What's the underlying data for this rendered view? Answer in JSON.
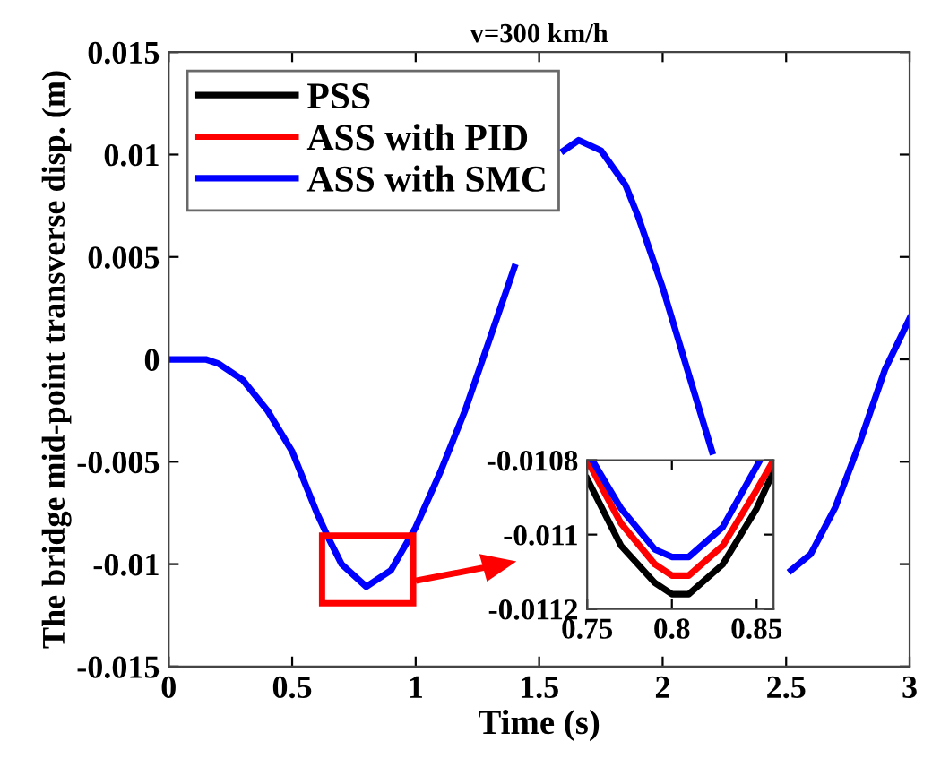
{
  "chart_data": [
    {
      "type": "line",
      "title": "v=300 km/h",
      "xlabel": "Time (s)",
      "ylabel": "The bridge mid-point transverse disp. (m)",
      "x": [
        0,
        0.15,
        0.2,
        0.3,
        0.4,
        0.5,
        0.6,
        0.65,
        0.7,
        0.8,
        0.9,
        1.0,
        1.1,
        1.2,
        1.3,
        1.4,
        1.5,
        1.6,
        1.66,
        1.75,
        1.85,
        1.9,
        2.0,
        2.1,
        2.2,
        2.3,
        2.4,
        2.52,
        2.6,
        2.7,
        2.8,
        2.9,
        3.0
      ],
      "series": [
        {
          "name": "PSS",
          "color": "#000000",
          "values": [
            null,
            null,
            null,
            null,
            null,
            null,
            null,
            null,
            null,
            null,
            null,
            null,
            null,
            null,
            null,
            null,
            null,
            null,
            null,
            null,
            null,
            null,
            null,
            null,
            null,
            null,
            null,
            null,
            null,
            null,
            null,
            null,
            null
          ]
        },
        {
          "name": "ASS with PID",
          "color": "#ff0000",
          "values": [
            null,
            null,
            null,
            null,
            null,
            null,
            null,
            null,
            null,
            null,
            null,
            null,
            null,
            null,
            null,
            null,
            null,
            null,
            null,
            null,
            null,
            null,
            null,
            null,
            null,
            null,
            null,
            null,
            null,
            null,
            null,
            null,
            null
          ]
        },
        {
          "name": "ASS with SMC",
          "color": "#0000ff",
          "values": [
            0,
            0,
            -0.0002,
            -0.001,
            -0.0025,
            -0.0045,
            -0.0075,
            -0.0088,
            -0.01,
            -0.0111,
            -0.0103,
            -0.0082,
            -0.0055,
            -0.0025,
            0.001,
            0.0045,
            null,
            0.0102,
            0.0107,
            0.0102,
            0.0085,
            0.007,
            0.0035,
            -0.0005,
            -0.0045,
            null,
            null,
            -0.0103,
            -0.0095,
            -0.0072,
            -0.004,
            -0.0005,
            0.002
          ]
        }
      ],
      "xlim": [
        0,
        3
      ],
      "xticks": [
        0,
        0.5,
        1,
        1.5,
        2,
        2.5,
        3
      ],
      "ylim": [
        -0.015,
        0.015
      ],
      "yticks": [
        -0.015,
        -0.01,
        -0.005,
        0,
        0.005,
        0.01,
        0.015
      ],
      "legend": "top left",
      "grid": false
    },
    {
      "type": "line",
      "series": [
        {
          "color": "#000000",
          "x": [
            0.75,
            0.77,
            0.79,
            0.8,
            0.81,
            0.83,
            0.85,
            0.86
          ],
          "values": [
            -0.01085,
            -0.01103,
            -0.01113,
            -0.01116,
            -0.01116,
            -0.01108,
            -0.01093,
            -0.01083
          ]
        },
        {
          "color": "#ff0000",
          "x": [
            0.75,
            0.77,
            0.79,
            0.8,
            0.81,
            0.83,
            0.85,
            0.86
          ],
          "values": [
            -0.0108,
            -0.01097,
            -0.01108,
            -0.01111,
            -0.01111,
            -0.01103,
            -0.01088,
            -0.0108
          ]
        },
        {
          "color": "#0000ff",
          "x": [
            0.753,
            0.77,
            0.79,
            0.8,
            0.81,
            0.83,
            0.852
          ],
          "values": [
            -0.0108,
            -0.01093,
            -0.01104,
            -0.01106,
            -0.01106,
            -0.01098,
            -0.0108
          ]
        }
      ],
      "xlim": [
        0.75,
        0.86
      ],
      "xticks": [
        0.75,
        0.8,
        0.85
      ],
      "ylim": [
        -0.0112,
        -0.0108
      ],
      "yticks": [
        -0.0112,
        -0.011,
        -0.0108
      ],
      "grid": false
    }
  ]
}
